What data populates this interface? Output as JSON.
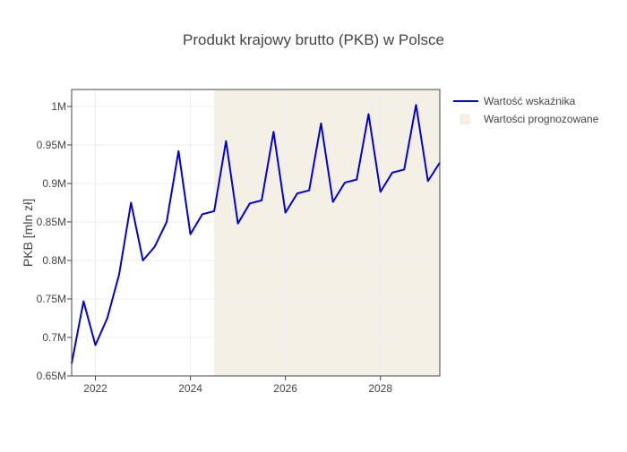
{
  "chart_data": {
    "type": "line",
    "title": "Produkt krajowy brutto (PKB) w Polsce",
    "xlabel": "",
    "ylabel": "PKB [mln zł]",
    "x_ticks": [
      "2022",
      "2024",
      "2026",
      "2028"
    ],
    "y_ticks": [
      "0.65M",
      "0.7M",
      "0.75M",
      "0.8M",
      "0.85M",
      "0.9M",
      "0.95M",
      "1M"
    ],
    "ylim": [
      650000,
      1022000
    ],
    "xlim": [
      "2021-07",
      "2029-04"
    ],
    "grid": true,
    "legend_position": "top-right",
    "forecast_region": {
      "start": "2024-07",
      "end": "2029-04",
      "label": "Wartości prognozowane",
      "color": "#f5f0e6"
    },
    "series": [
      {
        "name": "Wartość wskaźnika",
        "color": "#0000dd",
        "points": [
          {
            "x": "2021-07",
            "y": 666000
          },
          {
            "x": "2021-10",
            "y": 747000
          },
          {
            "x": "2022-01",
            "y": 690000
          },
          {
            "x": "2022-04",
            "y": 725000
          },
          {
            "x": "2022-07",
            "y": 782000
          },
          {
            "x": "2022-10",
            "y": 875000
          },
          {
            "x": "2023-01",
            "y": 800000
          },
          {
            "x": "2023-04",
            "y": 818000
          },
          {
            "x": "2023-07",
            "y": 850000
          },
          {
            "x": "2023-10",
            "y": 942000
          },
          {
            "x": "2024-01",
            "y": 834000
          },
          {
            "x": "2024-04",
            "y": 860000
          },
          {
            "x": "2024-07",
            "y": 864000
          },
          {
            "x": "2024-10",
            "y": 955000
          },
          {
            "x": "2025-01",
            "y": 848000
          },
          {
            "x": "2025-04",
            "y": 874000
          },
          {
            "x": "2025-07",
            "y": 878000
          },
          {
            "x": "2025-10",
            "y": 967000
          },
          {
            "x": "2026-01",
            "y": 862000
          },
          {
            "x": "2026-04",
            "y": 887000
          },
          {
            "x": "2026-07",
            "y": 891000
          },
          {
            "x": "2026-10",
            "y": 978000
          },
          {
            "x": "2027-01",
            "y": 876000
          },
          {
            "x": "2027-04",
            "y": 901000
          },
          {
            "x": "2027-07",
            "y": 905000
          },
          {
            "x": "2027-10",
            "y": 990000
          },
          {
            "x": "2028-01",
            "y": 889000
          },
          {
            "x": "2028-04",
            "y": 914000
          },
          {
            "x": "2028-07",
            "y": 918000
          },
          {
            "x": "2028-10",
            "y": 1002000
          },
          {
            "x": "2029-01",
            "y": 903000
          },
          {
            "x": "2029-04",
            "y": 927000
          }
        ]
      }
    ]
  }
}
